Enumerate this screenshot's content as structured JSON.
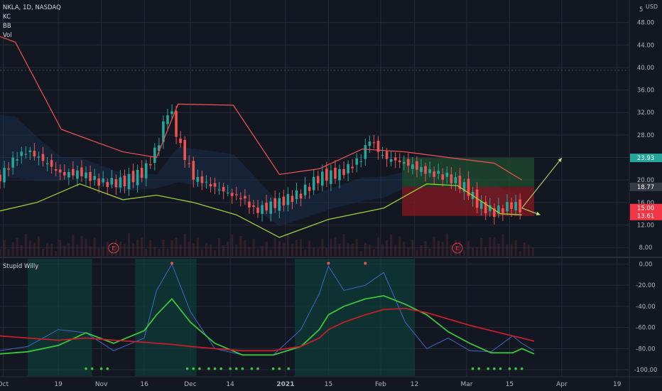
{
  "header": {
    "symbol_line": "NKLA, 1D, NASDAQ",
    "studies": [
      "KC",
      "BB",
      "Vol"
    ],
    "currency": "USD",
    "oscillator_name": "Stupid Willy"
  },
  "colors": {
    "background": "#131722",
    "grid": "#262b3a",
    "axis_text": "#b2b5be",
    "candle_up": "#26a69a",
    "candle_down": "#ef5350",
    "kc_upper": "#ef5350",
    "bb_lower": "#9ccc3c",
    "target_zone": "#1f4d2d",
    "stop_zone": "#801923",
    "osc_fast": "#3f67c8",
    "osc_mid": "#3cc43c",
    "osc_slow": "#c41f2a",
    "osc_highlight": "#0f3d38"
  },
  "price_axis": {
    "labels": [
      "48.00",
      "44.00",
      "40.00",
      "36.00",
      "32.00",
      "28.00",
      "24.00",
      "20.00",
      "16.00",
      "12.00",
      "8.00"
    ],
    "range": [
      6.5,
      52.0
    ],
    "top_partial": "5"
  },
  "price_tags": [
    {
      "value": 23.93,
      "label": "23.93",
      "color": "#26a69a"
    },
    {
      "value": 18.77,
      "label": "18.77",
      "color": "#363a45"
    },
    {
      "value": 15.0,
      "label": "15.00",
      "color": "#f23645"
    },
    {
      "value": 13.61,
      "label": "13.61",
      "color": "#f23645"
    }
  ],
  "osc_axis": {
    "labels": [
      "0.00",
      "-20.00",
      "-40.00",
      "-60.00",
      "-80.00",
      "-100.00"
    ],
    "range": [
      -106,
      5
    ]
  },
  "time_axis": {
    "labels": [
      {
        "text": "Oct",
        "date": "2020-10-01"
      },
      {
        "text": "19",
        "date": "2020-10-19"
      },
      {
        "text": "Nov",
        "date": "2020-11-02"
      },
      {
        "text": "16",
        "date": "2020-11-16"
      },
      {
        "text": "Dec",
        "date": "2020-12-01"
      },
      {
        "text": "14",
        "date": "2020-12-14"
      },
      {
        "text": "2021",
        "date": "2021-01-01",
        "bold": true
      },
      {
        "text": "15",
        "date": "2021-01-15"
      },
      {
        "text": "Feb",
        "date": "2021-02-01"
      },
      {
        "text": "12",
        "date": "2021-02-12"
      },
      {
        "text": "Mar",
        "date": "2021-03-01"
      },
      {
        "text": "15",
        "date": "2021-03-15"
      },
      {
        "text": "Apr",
        "date": "2021-04-01"
      },
      {
        "text": "19",
        "date": "2021-04-19"
      }
    ],
    "range": [
      "2020-09-30",
      "2021-04-23"
    ]
  },
  "earnings_markers": [
    {
      "label": "E",
      "date": "2020-11-06"
    },
    {
      "label": "E",
      "date": "2021-02-26"
    }
  ],
  "chart_data": [
    {
      "type": "line",
      "ylim": [
        6.5,
        52.0
      ],
      "ohlc_anchors": {
        "dates": [
          "2020-09-30",
          "2020-10-05",
          "2020-10-09",
          "2020-10-14",
          "2020-10-20",
          "2020-10-26",
          "2020-11-02",
          "2020-11-09",
          "2020-11-16",
          "2020-11-20",
          "2020-11-24",
          "2020-11-25",
          "2020-11-27",
          "2020-12-02",
          "2020-12-09",
          "2020-12-15",
          "2020-12-18",
          "2020-12-22",
          "2020-12-30",
          "2021-01-06",
          "2021-01-12",
          "2021-01-19",
          "2021-01-26",
          "2021-01-28",
          "2021-02-02",
          "2021-02-09",
          "2021-02-16",
          "2021-02-23",
          "2021-03-01",
          "2021-03-05",
          "2021-03-10",
          "2021-03-16",
          "2021-03-19"
        ],
        "closes": [
          20.5,
          24.0,
          25.2,
          23.5,
          21.0,
          21.3,
          19.5,
          19.6,
          21.5,
          25.5,
          33.0,
          31.5,
          27.0,
          20.5,
          18.7,
          17.2,
          16.8,
          14.5,
          16.0,
          17.6,
          20.5,
          21.2,
          24.0,
          27.5,
          24.0,
          23.0,
          21.5,
          20.5,
          18.5,
          15.5,
          14.3,
          15.7,
          14.7
        ]
      },
      "series": [
        {
          "name": "KC",
          "x": [
            "2020-09-30",
            "2020-10-05",
            "2020-10-20",
            "2020-11-09",
            "2020-11-20",
            "2020-11-27",
            "2020-12-15",
            "2020-12-30",
            "2021-01-12",
            "2021-01-26",
            "2021-02-09",
            "2021-02-23",
            "2021-03-10",
            "2021-03-19"
          ],
          "values": [
            45.5,
            44.5,
            29.0,
            25.0,
            24.0,
            33.5,
            33.3,
            21.0,
            22.0,
            25.5,
            25.0,
            24.0,
            23.0,
            20.0
          ]
        },
        {
          "name": "BB",
          "x": [
            "2020-09-30",
            "2020-10-12",
            "2020-10-26",
            "2020-11-09",
            "2020-11-20",
            "2020-12-02",
            "2020-12-16",
            "2020-12-30",
            "2021-01-15",
            "2021-02-02",
            "2021-02-16",
            "2021-02-26",
            "2021-03-12",
            "2021-03-19"
          ],
          "values": [
            14.5,
            16.0,
            19.3,
            16.5,
            17.3,
            16.0,
            13.8,
            9.8,
            13.0,
            15.0,
            19.3,
            19.0,
            14.0,
            13.8
          ]
        }
      ],
      "position_tool": {
        "start_date": "2021-02-08",
        "end_date": "2021-03-23",
        "target": 23.93,
        "entry": 18.77,
        "stop": 13.61
      },
      "projection_arrows": [
        {
          "from_date": "2021-03-19",
          "from_value": 15.0,
          "to_date": "2021-04-01",
          "to_value": 23.93
        },
        {
          "from_date": "2021-03-19",
          "from_value": 15.0,
          "to_date": "2021-03-25",
          "to_value": 13.8
        }
      ]
    },
    {
      "type": "line",
      "title": "Stupid Willy",
      "ylim": [
        -106,
        5
      ],
      "x": [
        "2020-09-30",
        "2020-10-09",
        "2020-10-19",
        "2020-10-28",
        "2020-11-06",
        "2020-11-16",
        "2020-11-20",
        "2020-11-25",
        "2020-12-01",
        "2020-12-09",
        "2020-12-18",
        "2020-12-28",
        "2021-01-06",
        "2021-01-12",
        "2021-01-15",
        "2021-01-20",
        "2021-01-27",
        "2021-02-02",
        "2021-02-09",
        "2021-02-16",
        "2021-02-23",
        "2021-03-02",
        "2021-03-09",
        "2021-03-16",
        "2021-03-19",
        "2021-03-23"
      ],
      "series": [
        {
          "name": "",
          "values": [
            -82,
            -78,
            -62,
            -65,
            -82,
            -70,
            -25,
            0,
            -45,
            -80,
            -86,
            -86,
            -62,
            -28,
            -2,
            -25,
            -20,
            -8,
            -55,
            -80,
            -70,
            -82,
            -83,
            -68,
            -75,
            -82
          ]
        },
        {
          "name": "",
          "values": [
            -85,
            -83,
            -77,
            -65,
            -75,
            -63,
            -48,
            -33,
            -55,
            -75,
            -86,
            -86,
            -78,
            -62,
            -48,
            -40,
            -33,
            -30,
            -38,
            -48,
            -64,
            -75,
            -84,
            -84,
            -80,
            -85
          ]
        },
        {
          "name": "",
          "values": [
            -68,
            -70,
            -72,
            -70,
            -72,
            -74,
            -75,
            -76,
            -78,
            -80,
            -82,
            -82,
            -78,
            -70,
            -62,
            -55,
            -48,
            -43,
            -42,
            -46,
            -52,
            -58,
            -63,
            -68,
            -70,
            -73
          ]
        }
      ],
      "highlight_ranges": [
        [
          "2020-10-09",
          "2020-10-30"
        ],
        [
          "2020-11-13",
          "2020-12-03"
        ],
        [
          "2021-01-04",
          "2021-02-12"
        ]
      ],
      "peak_markers": [
        "2020-11-25",
        "2021-01-15",
        "2021-01-27"
      ],
      "oversold_dot_dates": [
        "2020-10-28",
        "2020-10-30",
        "2020-11-02",
        "2020-11-04",
        "2020-11-30",
        "2020-12-02",
        "2020-12-04",
        "2020-12-07",
        "2020-12-09",
        "2020-12-11",
        "2020-12-14",
        "2020-12-16",
        "2020-12-18",
        "2020-12-21",
        "2020-12-23",
        "2020-12-28",
        "2020-12-30",
        "2021-01-02",
        "2021-03-03",
        "2021-03-05",
        "2021-03-08",
        "2021-03-10",
        "2021-03-12",
        "2021-03-15",
        "2021-03-17",
        "2021-03-19"
      ]
    }
  ]
}
